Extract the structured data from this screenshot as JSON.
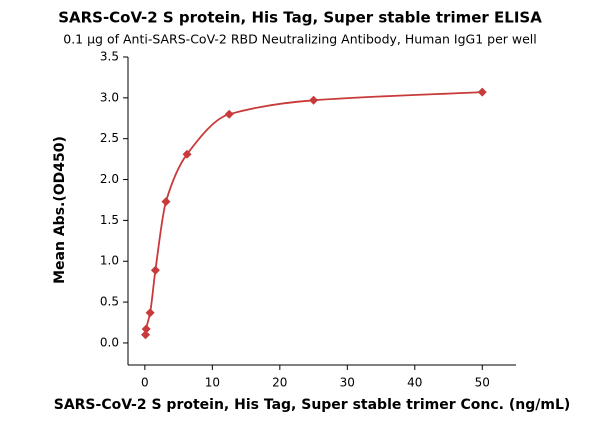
{
  "chart_data": {
    "type": "scatter",
    "title": "SARS-CoV-2 S protein, His Tag, Super stable trimer ELISA",
    "subtitle": "0.1 μg of Anti-SARS-CoV-2 RBD Neutralizing Antibody, Human IgG1 per well",
    "x_label": "SARS-CoV-2 S protein, His Tag, Super stable trimer Conc. (ng/mL)",
    "y_label": "Mean Abs.(OD450)",
    "series": [
      {
        "color": "#c93a3a",
        "x": [
          0.098,
          0.195,
          0.78,
          1.56,
          3.125,
          6.25,
          12.5,
          25,
          50
        ],
        "values": [
          0.1,
          0.17,
          0.37,
          0.89,
          1.73,
          2.31,
          2.8,
          2.97,
          3.07
        ]
      }
    ],
    "xlim": [
      -2.5,
      55
    ],
    "xticks": [
      0,
      10,
      20,
      30,
      40,
      50
    ],
    "ylim": [
      -0.27,
      3.5
    ],
    "yticks": [
      {
        "value": 0,
        "label": "0.0"
      },
      0.5,
      {
        "value": 1,
        "label": "1.0"
      },
      1.5,
      {
        "value": 2,
        "label": "2.0"
      },
      2.5,
      {
        "value": 3,
        "label": "3.0"
      },
      3.5
    ]
  }
}
